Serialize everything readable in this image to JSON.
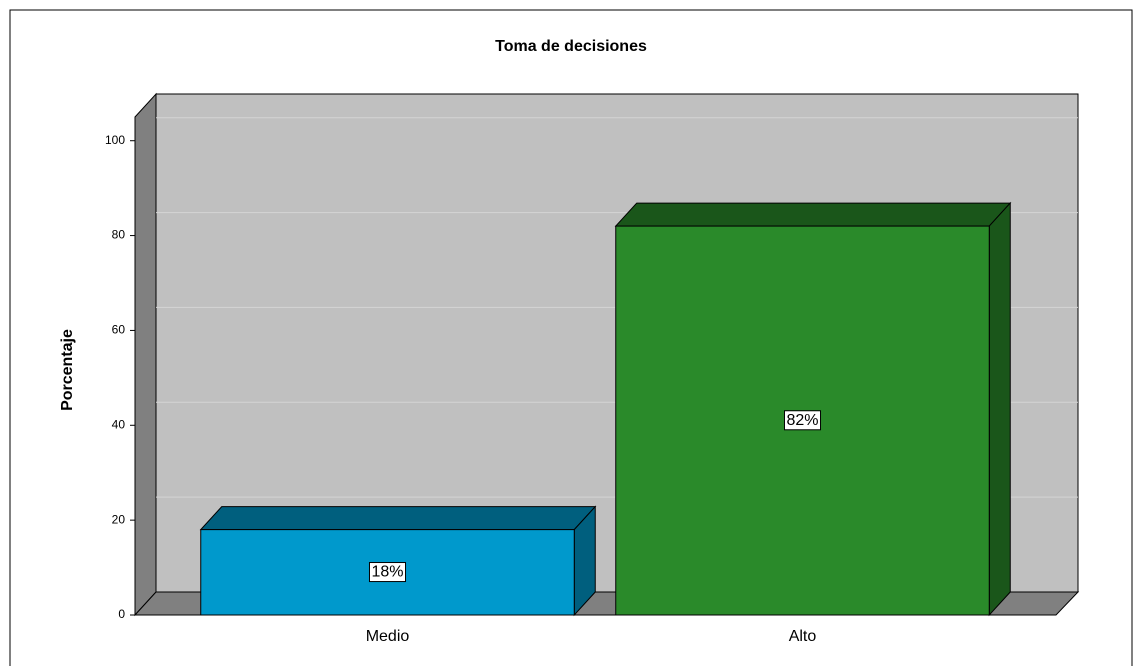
{
  "chart_data": {
    "type": "bar3d",
    "title": "Toma de decisiones",
    "y_label": "Porcentaje",
    "categories": [
      "Medio",
      "Alto"
    ],
    "values": [
      18,
      82
    ],
    "value_labels": [
      "18%",
      "82%"
    ],
    "colors": [
      "#0099cc",
      "#2a8a2a"
    ],
    "ylim": [
      0,
      105
    ],
    "yticks": [
      0,
      20,
      40,
      60,
      80,
      100
    ],
    "grid": true
  }
}
